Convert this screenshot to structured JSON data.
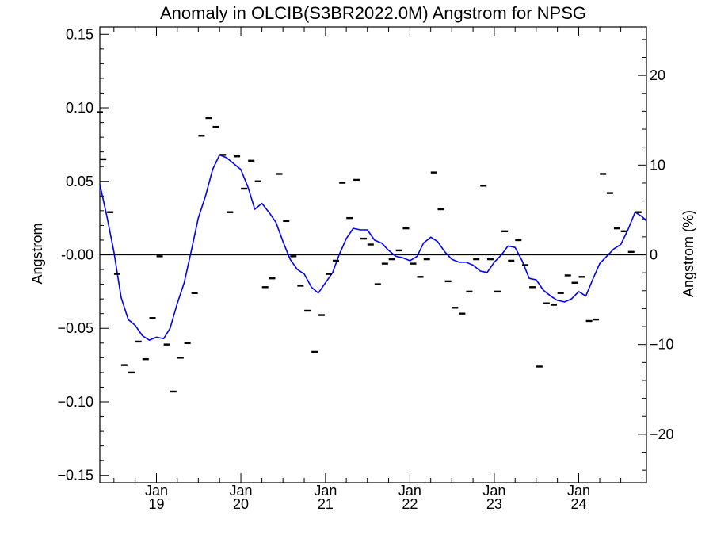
{
  "chart_data": {
    "type": "line",
    "title": "Anomaly in OLCIB(S3BR2022.0M) Angstrom for NPSG",
    "ylabel": "Angstrom",
    "y2label": "Angstrom (%)",
    "ylim": [
      -0.155,
      0.155
    ],
    "y2lim": [
      -25.4,
      25.4
    ],
    "yticks": [
      -0.15,
      -0.1,
      -0.05,
      0.0,
      0.05,
      0.1,
      0.15
    ],
    "yticklabels": [
      "−0.15",
      "−0.10",
      "−0.05",
      "-0.00",
      "0.05",
      "0.10",
      "0.15"
    ],
    "y2ticks": [
      -20,
      -10,
      0,
      10,
      20
    ],
    "y2ticklabels": [
      "−20",
      "−10",
      "0",
      "10",
      "20"
    ],
    "xlim": [
      "2018-05-01",
      "2024-10-20"
    ],
    "xticks": [
      "2019-01-01",
      "2020-01-01",
      "2021-01-01",
      "2022-01-01",
      "2023-01-01",
      "2024-01-01"
    ],
    "xticklabels": [
      [
        "Jan",
        "19"
      ],
      [
        "Jan",
        "20"
      ],
      [
        "Jan",
        "21"
      ],
      [
        "Jan",
        "22"
      ],
      [
        "Jan",
        "23"
      ],
      [
        "Jan",
        "24"
      ]
    ],
    "zero_line": true,
    "grid": false,
    "colors": {
      "line": "#0000ff",
      "markers": "#000000",
      "axes": "#000000",
      "background": "#ffffff"
    },
    "series": [
      {
        "kind": "line",
        "values": [
          {
            "x": "2018-05-01",
            "y": 0.048
          },
          {
            "x": "2018-06-01",
            "y": 0.026
          },
          {
            "x": "2018-07-01",
            "y": 0.002
          },
          {
            "x": "2018-08-01",
            "y": -0.029
          },
          {
            "x": "2018-09-01",
            "y": -0.044
          },
          {
            "x": "2018-10-01",
            "y": -0.048
          },
          {
            "x": "2018-11-01",
            "y": -0.055
          },
          {
            "x": "2018-12-01",
            "y": -0.058
          },
          {
            "x": "2019-01-01",
            "y": -0.056
          },
          {
            "x": "2019-02-01",
            "y": -0.057
          },
          {
            "x": "2019-03-01",
            "y": -0.05
          },
          {
            "x": "2019-04-01",
            "y": -0.033
          },
          {
            "x": "2019-05-01",
            "y": -0.019
          },
          {
            "x": "2019-06-01",
            "y": 0.003
          },
          {
            "x": "2019-07-01",
            "y": 0.025
          },
          {
            "x": "2019-08-01",
            "y": 0.04
          },
          {
            "x": "2019-09-01",
            "y": 0.058
          },
          {
            "x": "2019-10-01",
            "y": 0.068
          },
          {
            "x": "2019-11-01",
            "y": 0.066
          },
          {
            "x": "2019-12-01",
            "y": 0.062
          },
          {
            "x": "2020-01-01",
            "y": 0.058
          },
          {
            "x": "2020-02-01",
            "y": 0.046
          },
          {
            "x": "2020-03-01",
            "y": 0.031
          },
          {
            "x": "2020-04-01",
            "y": 0.035
          },
          {
            "x": "2020-05-01",
            "y": 0.029
          },
          {
            "x": "2020-06-01",
            "y": 0.022
          },
          {
            "x": "2020-07-01",
            "y": 0.009
          },
          {
            "x": "2020-08-01",
            "y": -0.003
          },
          {
            "x": "2020-09-01",
            "y": -0.01
          },
          {
            "x": "2020-10-01",
            "y": -0.013
          },
          {
            "x": "2020-11-01",
            "y": -0.022
          },
          {
            "x": "2020-12-01",
            "y": -0.026
          },
          {
            "x": "2021-01-01",
            "y": -0.019
          },
          {
            "x": "2021-02-01",
            "y": -0.012
          },
          {
            "x": "2021-03-01",
            "y": 0.0
          },
          {
            "x": "2021-04-01",
            "y": 0.011
          },
          {
            "x": "2021-05-01",
            "y": 0.018
          },
          {
            "x": "2021-06-01",
            "y": 0.017
          },
          {
            "x": "2021-07-01",
            "y": 0.017
          },
          {
            "x": "2021-08-01",
            "y": 0.01
          },
          {
            "x": "2021-09-01",
            "y": 0.008
          },
          {
            "x": "2021-10-01",
            "y": 0.003
          },
          {
            "x": "2021-11-01",
            "y": -0.001
          },
          {
            "x": "2021-12-01",
            "y": -0.002
          },
          {
            "x": "2022-01-01",
            "y": -0.004
          },
          {
            "x": "2022-02-01",
            "y": -0.001
          },
          {
            "x": "2022-03-01",
            "y": 0.008
          },
          {
            "x": "2022-04-01",
            "y": 0.012
          },
          {
            "x": "2022-05-01",
            "y": 0.009
          },
          {
            "x": "2022-06-01",
            "y": 0.002
          },
          {
            "x": "2022-07-01",
            "y": -0.003
          },
          {
            "x": "2022-08-01",
            "y": -0.005
          },
          {
            "x": "2022-09-01",
            "y": -0.005
          },
          {
            "x": "2022-10-01",
            "y": -0.007
          },
          {
            "x": "2022-11-01",
            "y": -0.011
          },
          {
            "x": "2022-12-01",
            "y": -0.012
          },
          {
            "x": "2023-01-01",
            "y": -0.005
          },
          {
            "x": "2023-02-01",
            "y": 0.0
          },
          {
            "x": "2023-03-01",
            "y": 0.006
          },
          {
            "x": "2023-04-01",
            "y": 0.005
          },
          {
            "x": "2023-05-01",
            "y": -0.004
          },
          {
            "x": "2023-06-01",
            "y": -0.016
          },
          {
            "x": "2023-07-01",
            "y": -0.017
          },
          {
            "x": "2023-08-01",
            "y": -0.024
          },
          {
            "x": "2023-09-01",
            "y": -0.028
          },
          {
            "x": "2023-10-01",
            "y": -0.031
          },
          {
            "x": "2023-11-01",
            "y": -0.032
          },
          {
            "x": "2023-12-01",
            "y": -0.03
          },
          {
            "x": "2024-01-01",
            "y": -0.025
          },
          {
            "x": "2024-02-01",
            "y": -0.028
          },
          {
            "x": "2024-03-01",
            "y": -0.017
          },
          {
            "x": "2024-04-01",
            "y": -0.006
          },
          {
            "x": "2024-05-01",
            "y": -0.001
          },
          {
            "x": "2024-06-01",
            "y": 0.004
          },
          {
            "x": "2024-07-01",
            "y": 0.007
          },
          {
            "x": "2024-08-01",
            "y": 0.017
          },
          {
            "x": "2024-09-01",
            "y": 0.029
          },
          {
            "x": "2024-10-01",
            "y": 0.026
          },
          {
            "x": "2024-10-20",
            "y": 0.023
          }
        ]
      },
      {
        "kind": "markers",
        "values": [
          {
            "x": "2018-05-01",
            "y": 0.097
          },
          {
            "x": "2018-05-15",
            "y": 0.065
          },
          {
            "x": "2018-06-15",
            "y": 0.029
          },
          {
            "x": "2018-07-15",
            "y": -0.013
          },
          {
            "x": "2018-08-15",
            "y": -0.075
          },
          {
            "x": "2018-09-15",
            "y": -0.08
          },
          {
            "x": "2018-10-15",
            "y": -0.059
          },
          {
            "x": "2018-11-15",
            "y": -0.071
          },
          {
            "x": "2018-12-15",
            "y": -0.043
          },
          {
            "x": "2019-01-15",
            "y": -0.001
          },
          {
            "x": "2019-02-15",
            "y": -0.061
          },
          {
            "x": "2019-03-15",
            "y": -0.093
          },
          {
            "x": "2019-04-15",
            "y": -0.07
          },
          {
            "x": "2019-05-15",
            "y": -0.06
          },
          {
            "x": "2019-06-15",
            "y": -0.026
          },
          {
            "x": "2019-07-15",
            "y": 0.081
          },
          {
            "x": "2019-08-15",
            "y": 0.093
          },
          {
            "x": "2019-09-15",
            "y": 0.087
          },
          {
            "x": "2019-10-15",
            "y": 0.068
          },
          {
            "x": "2019-11-15",
            "y": 0.029
          },
          {
            "x": "2019-12-15",
            "y": 0.067
          },
          {
            "x": "2020-01-15",
            "y": 0.045
          },
          {
            "x": "2020-02-15",
            "y": 0.064
          },
          {
            "x": "2020-03-15",
            "y": 0.05
          },
          {
            "x": "2020-04-15",
            "y": -0.022
          },
          {
            "x": "2020-05-15",
            "y": -0.016
          },
          {
            "x": "2020-06-15",
            "y": 0.055
          },
          {
            "x": "2020-07-15",
            "y": 0.023
          },
          {
            "x": "2020-08-15",
            "y": -0.001
          },
          {
            "x": "2020-09-15",
            "y": -0.021
          },
          {
            "x": "2020-10-15",
            "y": -0.038
          },
          {
            "x": "2020-11-15",
            "y": -0.066
          },
          {
            "x": "2020-12-15",
            "y": -0.041
          },
          {
            "x": "2021-01-15",
            "y": -0.013
          },
          {
            "x": "2021-02-15",
            "y": -0.004
          },
          {
            "x": "2021-03-15",
            "y": 0.049
          },
          {
            "x": "2021-04-15",
            "y": 0.025
          },
          {
            "x": "2021-05-15",
            "y": 0.051
          },
          {
            "x": "2021-06-15",
            "y": 0.011
          },
          {
            "x": "2021-07-15",
            "y": 0.007
          },
          {
            "x": "2021-08-15",
            "y": -0.02
          },
          {
            "x": "2021-09-15",
            "y": -0.006
          },
          {
            "x": "2021-10-15",
            "y": -0.003
          },
          {
            "x": "2021-11-15",
            "y": 0.003
          },
          {
            "x": "2021-12-15",
            "y": 0.018
          },
          {
            "x": "2022-01-15",
            "y": -0.006
          },
          {
            "x": "2022-02-15",
            "y": -0.015
          },
          {
            "x": "2022-03-15",
            "y": -0.003
          },
          {
            "x": "2022-04-15",
            "y": 0.056
          },
          {
            "x": "2022-05-15",
            "y": 0.031
          },
          {
            "x": "2022-06-15",
            "y": -0.018
          },
          {
            "x": "2022-07-15",
            "y": -0.036
          },
          {
            "x": "2022-08-15",
            "y": -0.04
          },
          {
            "x": "2022-09-15",
            "y": -0.025
          },
          {
            "x": "2022-10-15",
            "y": -0.003
          },
          {
            "x": "2022-11-15",
            "y": 0.047
          },
          {
            "x": "2022-12-15",
            "y": -0.003
          },
          {
            "x": "2023-01-15",
            "y": -0.025
          },
          {
            "x": "2023-02-15",
            "y": 0.016
          },
          {
            "x": "2023-03-15",
            "y": -0.004
          },
          {
            "x": "2023-04-15",
            "y": 0.01
          },
          {
            "x": "2023-05-15",
            "y": -0.007
          },
          {
            "x": "2023-06-15",
            "y": -0.022
          },
          {
            "x": "2023-07-15",
            "y": -0.076
          },
          {
            "x": "2023-08-15",
            "y": -0.033
          },
          {
            "x": "2023-09-15",
            "y": -0.034
          },
          {
            "x": "2023-10-15",
            "y": -0.026
          },
          {
            "x": "2023-11-15",
            "y": -0.014
          },
          {
            "x": "2023-12-15",
            "y": -0.019
          },
          {
            "x": "2024-01-15",
            "y": -0.015
          },
          {
            "x": "2024-02-15",
            "y": -0.045
          },
          {
            "x": "2024-03-15",
            "y": -0.044
          },
          {
            "x": "2024-04-15",
            "y": 0.055
          },
          {
            "x": "2024-05-15",
            "y": 0.042
          },
          {
            "x": "2024-06-15",
            "y": 0.018
          },
          {
            "x": "2024-07-15",
            "y": 0.016
          },
          {
            "x": "2024-08-15",
            "y": 0.002
          },
          {
            "x": "2024-09-15",
            "y": 0.029
          }
        ]
      }
    ]
  }
}
